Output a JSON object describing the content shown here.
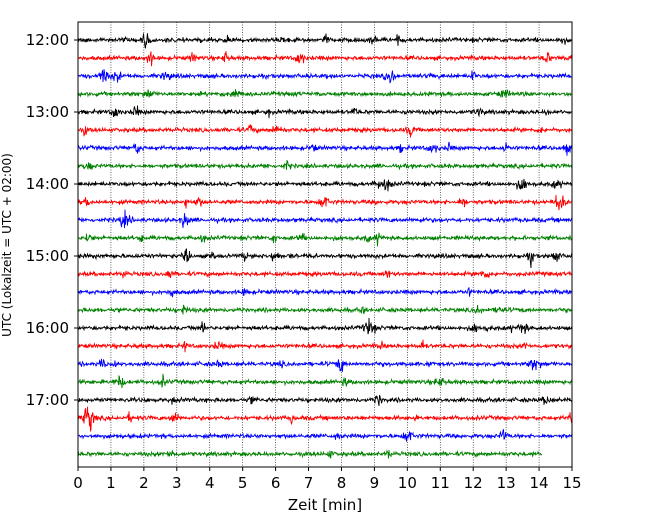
{
  "chart_data": {
    "type": "line",
    "title": "",
    "xlabel": "Zeit  [min]",
    "ylabel": "UTC (Lokalzeit = UTC + 02:00)",
    "xlim": [
      0,
      15
    ],
    "x_ticks": [
      "0",
      "1",
      "2",
      "3",
      "4",
      "5",
      "6",
      "7",
      "8",
      "9",
      "10",
      "11",
      "12",
      "13",
      "14",
      "15"
    ],
    "y_tick_labels": [
      "12:00",
      "13:00",
      "14:00",
      "15:00",
      "16:00",
      "17:00"
    ],
    "x_grid": true,
    "trace_minutes": 15,
    "trace_colors": [
      "#000000",
      "#ff0000",
      "#0000ff",
      "#008000"
    ],
    "series": [
      {
        "start": "12:00",
        "end_minute": 15
      },
      {
        "start": "12:15",
        "end_minute": 15
      },
      {
        "start": "12:30",
        "end_minute": 15
      },
      {
        "start": "12:45",
        "end_minute": 15
      },
      {
        "start": "13:00",
        "end_minute": 15
      },
      {
        "start": "13:15",
        "end_minute": 15
      },
      {
        "start": "13:30",
        "end_minute": 15
      },
      {
        "start": "13:45",
        "end_minute": 15
      },
      {
        "start": "14:00",
        "end_minute": 15
      },
      {
        "start": "14:15",
        "end_minute": 15
      },
      {
        "start": "14:30",
        "end_minute": 15
      },
      {
        "start": "14:45",
        "end_minute": 15
      },
      {
        "start": "15:00",
        "end_minute": 15
      },
      {
        "start": "15:15",
        "end_minute": 15
      },
      {
        "start": "15:30",
        "end_minute": 15
      },
      {
        "start": "15:45",
        "end_minute": 15
      },
      {
        "start": "16:00",
        "end_minute": 15
      },
      {
        "start": "16:15",
        "end_minute": 15
      },
      {
        "start": "16:30",
        "end_minute": 15
      },
      {
        "start": "16:45",
        "end_minute": 15
      },
      {
        "start": "17:00",
        "end_minute": 15
      },
      {
        "start": "17:15",
        "end_minute": 15
      },
      {
        "start": "17:30",
        "end_minute": 15
      },
      {
        "start": "17:45",
        "end_minute": 14.1
      }
    ]
  }
}
